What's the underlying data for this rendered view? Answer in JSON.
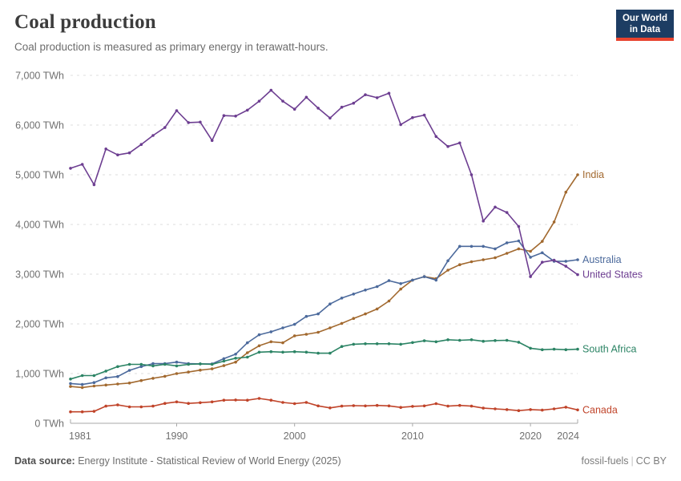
{
  "header": {
    "title": "Coal production",
    "subtitle": "Coal production is measured as primary energy in terawatt-hours."
  },
  "logo": {
    "line1": "Our World",
    "line2": "in Data"
  },
  "footer": {
    "source_label": "Data source:",
    "source_value": "Energy Institute - Statistical Review of World Energy (2025)",
    "tags": "fossil-fuels",
    "divider": "|",
    "license": "CC BY"
  },
  "chart_data": {
    "type": "line",
    "title": "Coal production",
    "unit": "TWh",
    "grid": "horizontal-dashed",
    "legend_position": "end-of-line-labels",
    "xlim": [
      1981,
      2024
    ],
    "ylim": [
      0,
      7000
    ],
    "x": [
      1981,
      1982,
      1983,
      1984,
      1985,
      1986,
      1987,
      1988,
      1989,
      1990,
      1991,
      1992,
      1993,
      1994,
      1995,
      1996,
      1997,
      1998,
      1999,
      2000,
      2001,
      2002,
      2003,
      2004,
      2005,
      2006,
      2007,
      2008,
      2009,
      2010,
      2011,
      2012,
      2013,
      2014,
      2015,
      2016,
      2017,
      2018,
      2019,
      2020,
      2021,
      2022,
      2023,
      2024
    ],
    "x_ticks": [
      {
        "value": 1981,
        "label": "1981"
      },
      {
        "value": 1990,
        "label": "1990"
      },
      {
        "value": 2000,
        "label": "2000"
      },
      {
        "value": 2010,
        "label": "2010"
      },
      {
        "value": 2020,
        "label": "2020"
      },
      {
        "value": 2024,
        "label": "2024"
      }
    ],
    "y_ticks": [
      {
        "value": 0,
        "label": "0 TWh"
      },
      {
        "value": 1000,
        "label": "1,000 TWh"
      },
      {
        "value": 2000,
        "label": "2,000 TWh"
      },
      {
        "value": 3000,
        "label": "3,000 TWh"
      },
      {
        "value": 4000,
        "label": "4,000 TWh"
      },
      {
        "value": 5000,
        "label": "5,000 TWh"
      },
      {
        "value": 6000,
        "label": "6,000 TWh"
      },
      {
        "value": 7000,
        "label": "7,000 TWh"
      }
    ],
    "series": [
      {
        "name": "India",
        "color": "#a2692f",
        "values": [
          740,
          720,
          750,
          770,
          790,
          810,
          860,
          905,
          945,
          1000,
          1030,
          1070,
          1095,
          1160,
          1230,
          1420,
          1560,
          1640,
          1620,
          1760,
          1790,
          1830,
          1920,
          2010,
          2110,
          2200,
          2300,
          2460,
          2700,
          2880,
          2950,
          2910,
          3080,
          3190,
          3250,
          3290,
          3330,
          3420,
          3510,
          3460,
          3660,
          4050,
          4650,
          5000
        ]
      },
      {
        "name": "Australia",
        "color": "#4c6a9c",
        "values": [
          800,
          780,
          820,
          915,
          940,
          1065,
          1140,
          1200,
          1200,
          1230,
          1200,
          1195,
          1195,
          1300,
          1390,
          1620,
          1780,
          1840,
          1920,
          1990,
          2150,
          2200,
          2400,
          2520,
          2600,
          2680,
          2750,
          2870,
          2810,
          2880,
          2950,
          2880,
          3270,
          3560,
          3560,
          3560,
          3510,
          3630,
          3670,
          3340,
          3430,
          3260,
          3260,
          3290
        ]
      },
      {
        "name": "United States",
        "color": "#6d3e91",
        "values": [
          5130,
          5210,
          4800,
          5520,
          5400,
          5440,
          5610,
          5790,
          5950,
          6290,
          6050,
          6060,
          5690,
          6190,
          6180,
          6300,
          6480,
          6700,
          6480,
          6320,
          6560,
          6340,
          6140,
          6360,
          6440,
          6610,
          6550,
          6640,
          6010,
          6150,
          6200,
          5770,
          5570,
          5640,
          5000,
          4070,
          4350,
          4240,
          3960,
          2950,
          3240,
          3280,
          3160,
          2990
        ]
      },
      {
        "name": "South Africa",
        "color": "#2c8465",
        "values": [
          890,
          960,
          960,
          1050,
          1140,
          1185,
          1185,
          1155,
          1185,
          1155,
          1185,
          1195,
          1185,
          1250,
          1310,
          1330,
          1430,
          1440,
          1430,
          1440,
          1430,
          1410,
          1410,
          1545,
          1590,
          1600,
          1600,
          1600,
          1590,
          1625,
          1660,
          1640,
          1680,
          1670,
          1680,
          1650,
          1665,
          1670,
          1630,
          1510,
          1480,
          1490,
          1480,
          1490
        ]
      },
      {
        "name": "Canada",
        "color": "#c0442a",
        "values": [
          230,
          230,
          240,
          345,
          370,
          330,
          330,
          345,
          400,
          430,
          400,
          415,
          430,
          465,
          470,
          465,
          500,
          465,
          420,
          395,
          420,
          350,
          310,
          345,
          355,
          350,
          360,
          350,
          320,
          340,
          350,
          395,
          345,
          360,
          345,
          305,
          290,
          275,
          255,
          275,
          265,
          290,
          325,
          270
        ]
      }
    ]
  }
}
